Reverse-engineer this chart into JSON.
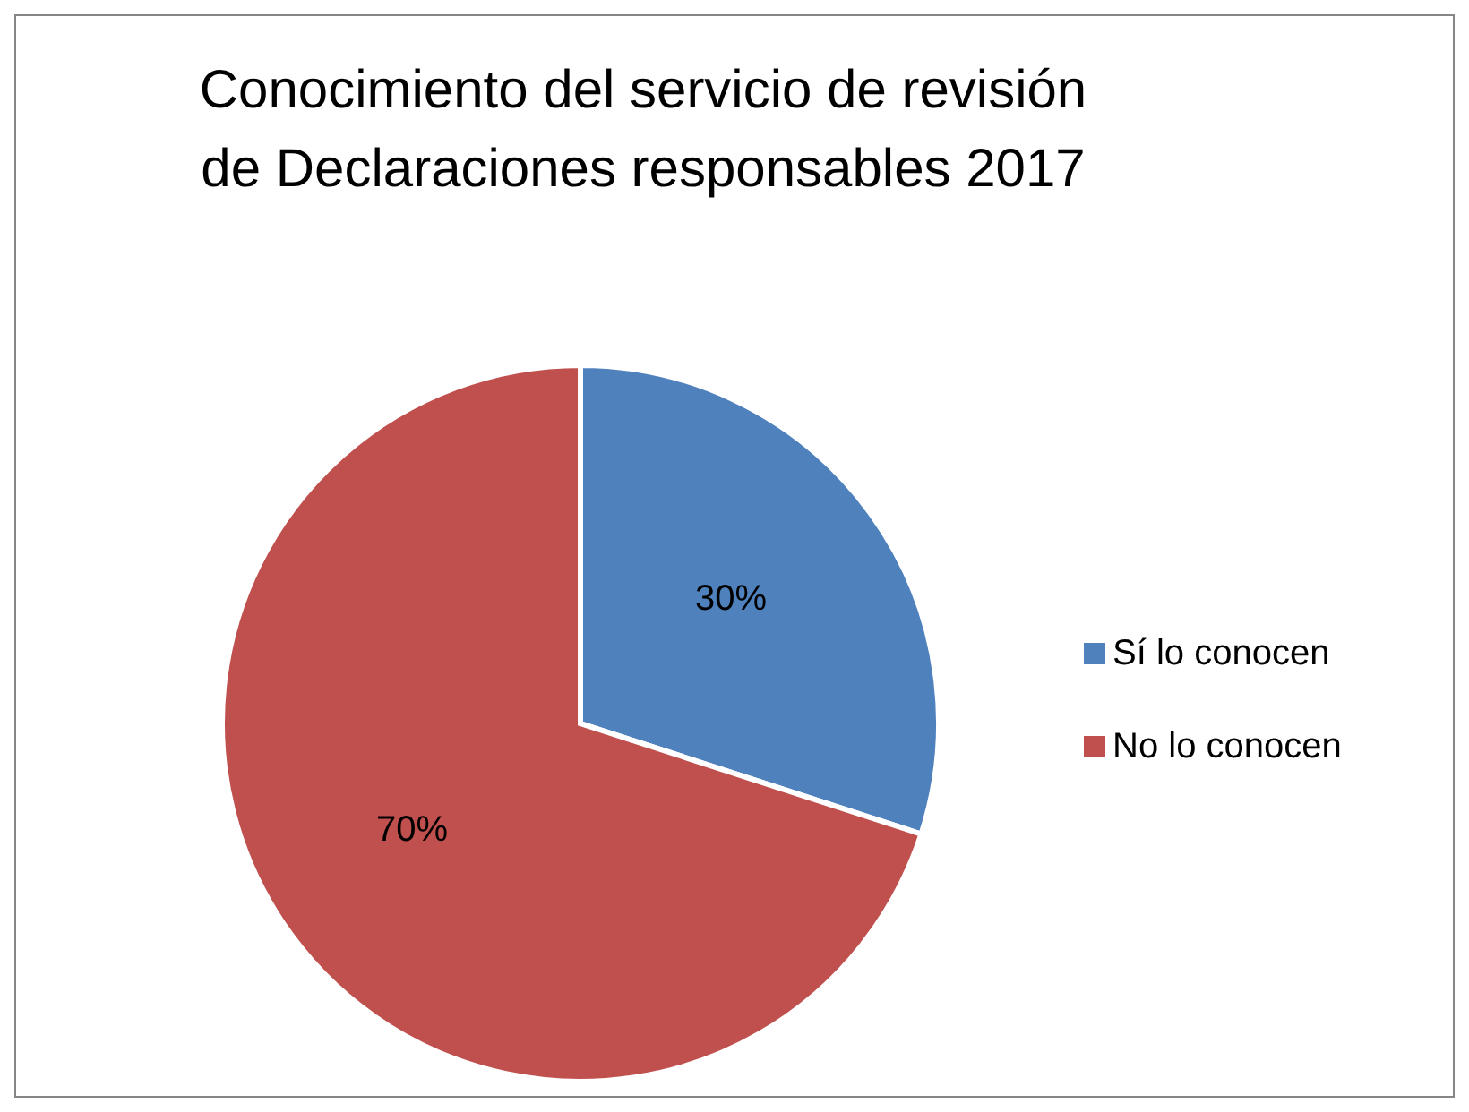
{
  "chart_data": {
    "type": "pie",
    "title": "Conocimiento del servicio de revisión de Declaraciones responsables 2017",
    "categories": [
      "Sí lo conocen",
      "No lo conocen"
    ],
    "values": [
      30,
      70
    ],
    "colors": [
      "#4f81bd",
      "#c0504d"
    ],
    "value_labels": [
      "30%",
      "70%"
    ],
    "legend": "right"
  }
}
